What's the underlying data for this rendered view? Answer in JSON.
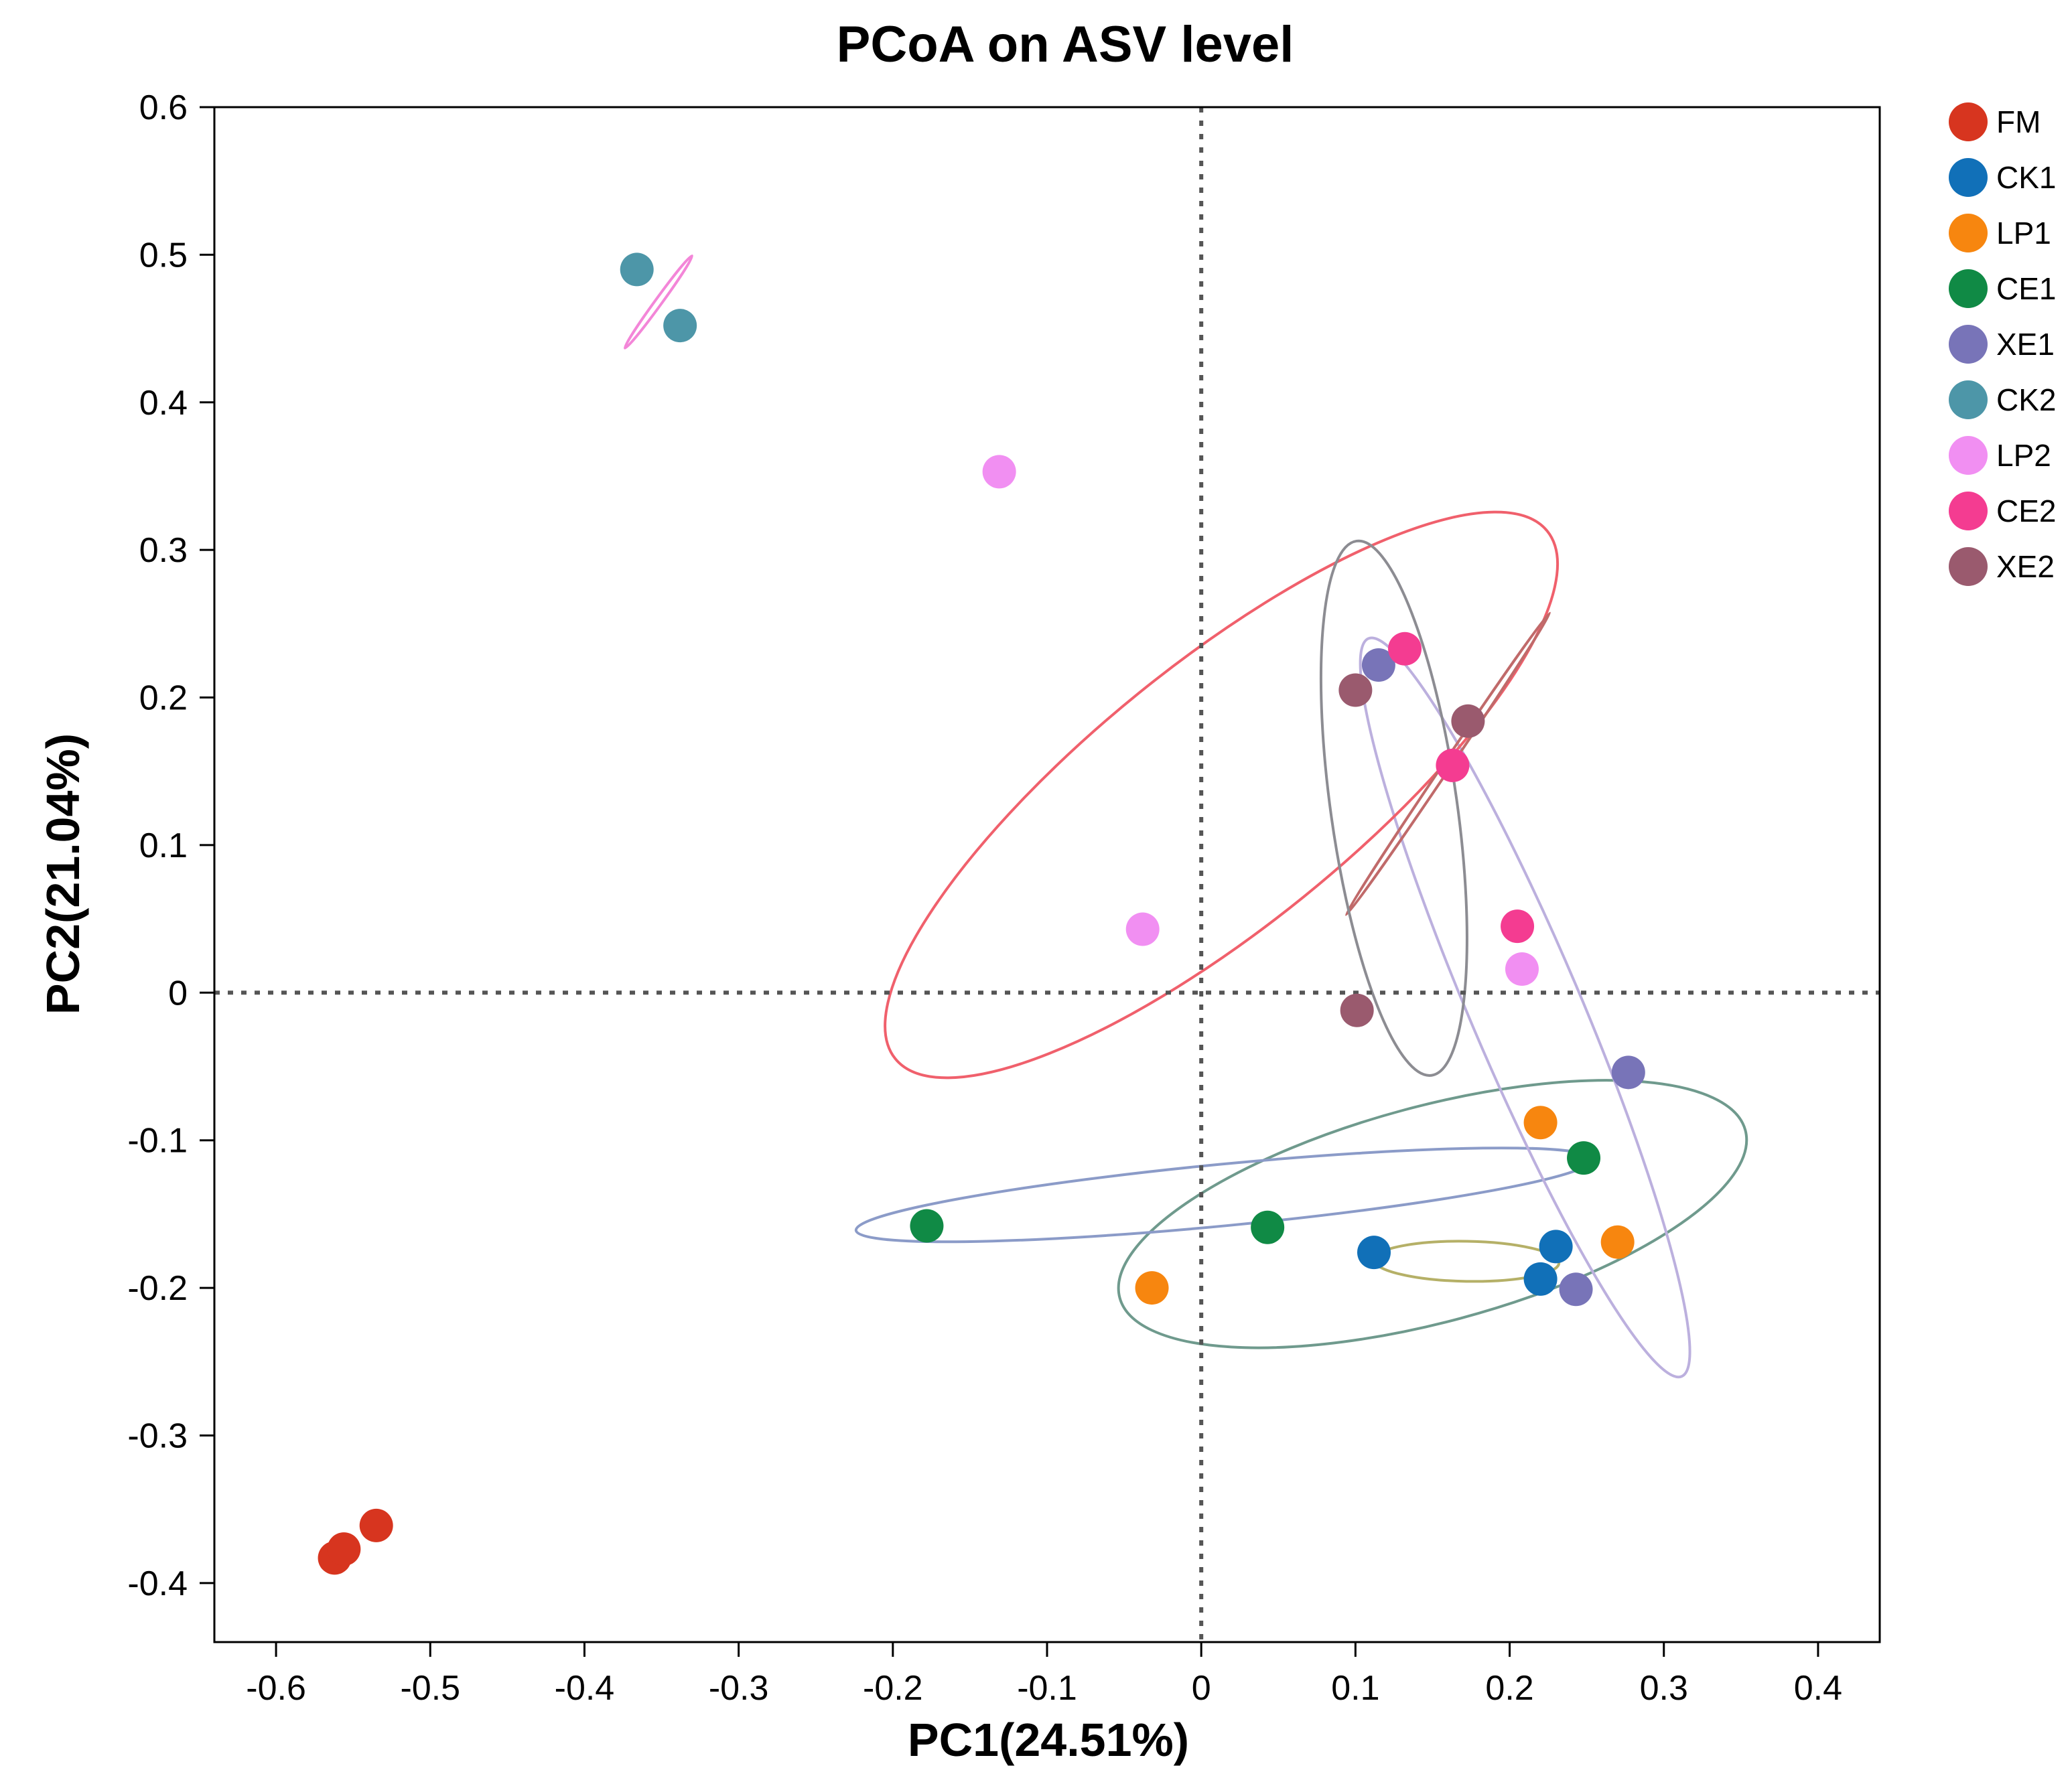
{
  "chart_data": {
    "type": "scatter",
    "title": "PCoA on ASV level",
    "xlabel": "PC1(24.51%)",
    "ylabel": "PC2(21.04%)",
    "xlim": [
      -0.64,
      0.44
    ],
    "ylim": [
      -0.44,
      0.6
    ],
    "xticks": [
      -0.6,
      -0.5,
      -0.4,
      -0.3,
      -0.2,
      -0.1,
      0,
      0.1,
      0.2,
      0.3,
      0.4
    ],
    "xtick_labels": [
      "-0.6",
      "-0.5",
      "-0.4",
      "-0.3",
      "-0.2",
      "-0.1",
      "0",
      "0.1",
      "0.2",
      "0.3",
      "0.4"
    ],
    "yticks": [
      0.6,
      0.5,
      0.4,
      0.3,
      0.2,
      0.1,
      0,
      -0.1,
      -0.2,
      -0.3,
      -0.4
    ],
    "ytick_labels": [
      "0.6",
      "0.5",
      "0.4",
      "0.3",
      "0.2",
      "0.1",
      "0",
      "-0.1",
      "-0.2",
      "-0.3",
      "-0.4"
    ],
    "reference_lines": {
      "x": 0,
      "y": 0,
      "style": "dotted"
    },
    "legend_position": "right",
    "series": [
      {
        "name": "FM",
        "color": "#D7351F",
        "points": [
          [
            -0.562,
            -0.383
          ],
          [
            -0.556,
            -0.377
          ],
          [
            -0.535,
            -0.361
          ]
        ]
      },
      {
        "name": "CK1",
        "color": "#1170B8",
        "points": [
          [
            0.112,
            -0.176
          ],
          [
            0.23,
            -0.172
          ],
          [
            0.22,
            -0.194
          ]
        ],
        "ellipse": {
          "cx": 0.172,
          "cy": -0.182,
          "rx": 0.06,
          "ry": 0.013,
          "angle": -1,
          "color": "#B5B067"
        }
      },
      {
        "name": "LP1",
        "color": "#F7860F",
        "points": [
          [
            -0.032,
            -0.2
          ],
          [
            0.22,
            -0.088
          ],
          [
            0.27,
            -0.169
          ]
        ],
        "ellipse": {
          "cx": 0.15,
          "cy": -0.15,
          "rx": 0.21,
          "ry": 0.07,
          "angle": 15,
          "color": "#6F9A8D"
        }
      },
      {
        "name": "CE1",
        "color": "#108A45",
        "points": [
          [
            -0.178,
            -0.158
          ],
          [
            0.043,
            -0.159
          ],
          [
            0.248,
            -0.112
          ]
        ],
        "ellipse": {
          "cx": 0.015,
          "cy": -0.137,
          "rx": 0.24,
          "ry": 0.02,
          "angle": 5.5,
          "color": "#8B9BC8"
        }
      },
      {
        "name": "XE1",
        "color": "#7874B8",
        "points": [
          [
            0.115,
            0.222
          ],
          [
            0.277,
            -0.054
          ],
          [
            0.243,
            -0.201
          ]
        ],
        "ellipse": {
          "cx": 0.21,
          "cy": -0.01,
          "rx": 0.036,
          "ry": 0.26,
          "angle": 23,
          "color": "#BCB0DE"
        }
      },
      {
        "name": "CK2",
        "color": "#4D96A8",
        "points": [
          [
            -0.366,
            0.49
          ],
          [
            -0.338,
            0.452
          ]
        ],
        "ellipse": {
          "cx": -0.352,
          "cy": 0.468,
          "rx": 0.037,
          "ry": 0.0022,
          "angle": 54,
          "color": "#F386D8"
        }
      },
      {
        "name": "LP2",
        "color": "#F18FF2",
        "points": [
          [
            -0.131,
            0.353
          ],
          [
            -0.038,
            0.043
          ],
          [
            0.208,
            0.016
          ]
        ],
        "ellipse": {
          "cx": 0.013,
          "cy": 0.134,
          "rx": 0.272,
          "ry": 0.085,
          "angle": 39,
          "color": "#F0606C"
        }
      },
      {
        "name": "CE2",
        "color": "#F43C91",
        "points": [
          [
            0.132,
            0.233
          ],
          [
            0.163,
            0.154
          ],
          [
            0.205,
            0.045
          ]
        ],
        "ellipse": {
          "cx": 0.16,
          "cy": 0.155,
          "rx": 0.118,
          "ry": 0.0025,
          "angle": 56,
          "color": "#C06A6A"
        }
      },
      {
        "name": "XE2",
        "color": "#9A5A6E",
        "points": [
          [
            0.1,
            0.205
          ],
          [
            0.173,
            0.184
          ],
          [
            0.101,
            -0.012
          ]
        ],
        "ellipse": {
          "cx": 0.125,
          "cy": 0.125,
          "rx": 0.041,
          "ry": 0.175,
          "angle": 8,
          "color": "#8C8C92"
        }
      }
    ]
  }
}
